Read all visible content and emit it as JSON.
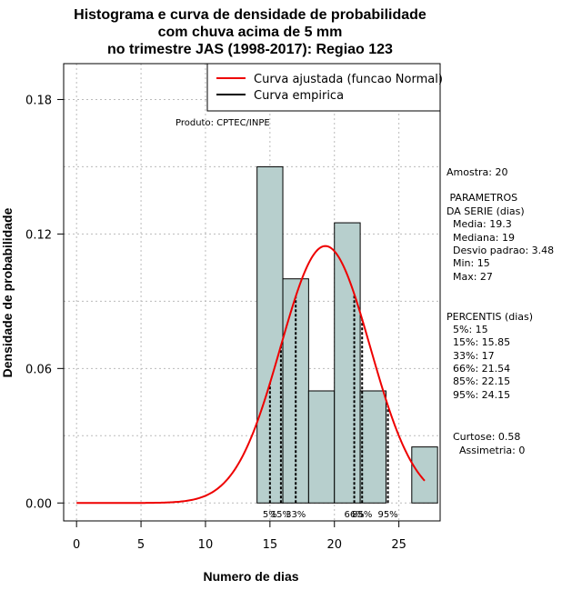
{
  "chart_data": {
    "type": "histogram",
    "title_lines": [
      "Histograma e curva de densidade de probabilidade",
      "com chuva acima de 5 mm",
      "no trimestre JAS (1998-2017): Regiao 123"
    ],
    "xlabel": "Numero de dias",
    "ylabel": "Densidade de probabilidade",
    "xlim": [
      -1,
      28.2
    ],
    "ylim": [
      -0.008,
      0.196
    ],
    "xticks": [
      0,
      5,
      10,
      15,
      20,
      25
    ],
    "yticks": [
      0.0,
      0.06,
      0.12,
      0.18
    ],
    "ytick_labels": [
      "0.00",
      "0.06",
      "0.12",
      "0.18"
    ],
    "bins": [
      {
        "start": 14,
        "end": 16,
        "density": 0.15
      },
      {
        "start": 16,
        "end": 18,
        "density": 0.1
      },
      {
        "start": 18,
        "end": 20,
        "density": 0.05
      },
      {
        "start": 20,
        "end": 22,
        "density": 0.125
      },
      {
        "start": 22,
        "end": 24,
        "density": 0.05
      },
      {
        "start": 24,
        "end": 26,
        "density": 0.0
      },
      {
        "start": 26,
        "end": 28,
        "density": 0.025
      }
    ],
    "fitted_curve": {
      "name": "Curva ajustada (funcao Normal)",
      "color": "#ee0000",
      "mean": 19.3,
      "sd": 3.48,
      "x_range": [
        0,
        27
      ]
    },
    "empirical_curve": {
      "name": "Curva empirica",
      "color": "#000000"
    },
    "percentile_lines": [
      {
        "label": "5%",
        "value": 15
      },
      {
        "label": "15%",
        "value": 15.85
      },
      {
        "label": "33%",
        "value": 17
      },
      {
        "label": "66%",
        "value": 21.54
      },
      {
        "label": "85%",
        "value": 22.15
      },
      {
        "label": "95%",
        "value": 24.15
      }
    ],
    "product_note": "Produto: CPTEC/INPE",
    "stats_text": {
      "amostra": "Amostra: 20",
      "parametros": [
        " PARAMETROS",
        "DA SERIE (dias)",
        "  Media: 19.3",
        "  Mediana: 19",
        "  Desvio padrao: 3.48",
        "  Min: 15",
        "  Max: 27"
      ],
      "percentis": [
        "PERCENTIS (dias)",
        "  5%: 15",
        "  15%: 15.85",
        "  33%: 17",
        "  66%: 21.54",
        "  85%: 22.15",
        "  95%: 24.15"
      ],
      "shape": [
        "  Curtose: 0.58",
        "    Assimetria: 0"
      ]
    },
    "colors": {
      "bar_fill": "#b7cfcd",
      "bar_stroke": "#000000",
      "grid": "#bbbbbb"
    }
  }
}
